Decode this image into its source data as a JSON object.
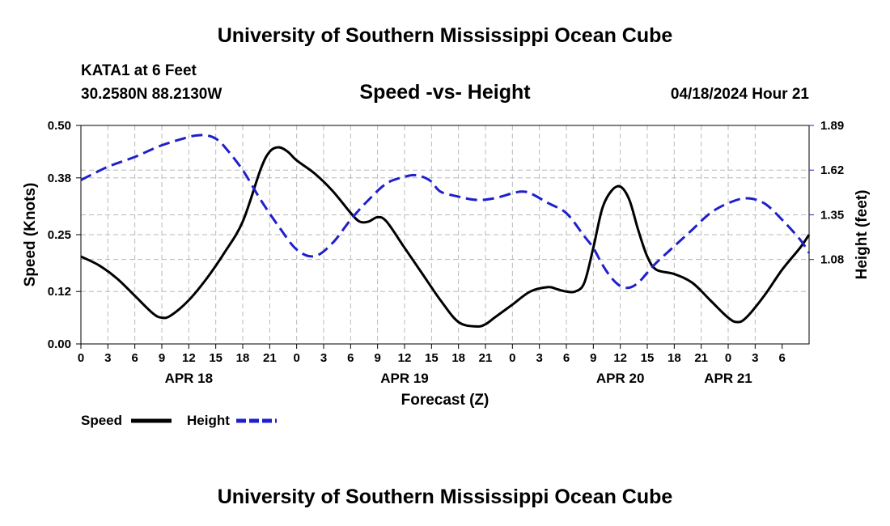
{
  "header": {
    "title": "University of Southern Mississippi Ocean Cube",
    "station": "KATA1 at 6 Feet",
    "coordinates": "30.2580N  88.2130W",
    "timestamp": "04/18/2024 Hour 21"
  },
  "footer": {
    "title": "University of Southern Mississippi Ocean Cube"
  },
  "chart_data": {
    "type": "line",
    "title": "Speed -vs- Height",
    "xlabel": "Forecast (Z)",
    "ylabel": "Speed (Knots)",
    "y2label": "Height (feet)",
    "ylim": [
      0,
      0.5
    ],
    "y2lim": [
      0.57,
      1.89
    ],
    "grid": true,
    "legend_position": "bottom-left",
    "x_range_hours": [
      0,
      81
    ],
    "x_tick_step_hours": 3,
    "x_tick_labels": [
      "0",
      "3",
      "6",
      "9",
      "12",
      "15",
      "18",
      "21",
      "0",
      "3",
      "6",
      "9",
      "12",
      "15",
      "18",
      "21",
      "0",
      "3",
      "6",
      "9",
      "12",
      "15",
      "18",
      "21",
      "0",
      "3",
      "6"
    ],
    "date_labels": [
      {
        "label": "APR 18",
        "hour": 12
      },
      {
        "label": "APR 19",
        "hour": 36
      },
      {
        "label": "APR 20",
        "hour": 60
      },
      {
        "label": "APR 21",
        "hour": 72
      }
    ],
    "y_ticks": [
      0.0,
      0.12,
      0.25,
      0.38,
      0.5
    ],
    "y_tick_labels": [
      "0.00",
      "0.12",
      "0.25",
      "0.38",
      "0.50"
    ],
    "y2_ticks": [
      1.08,
      1.35,
      1.62,
      1.89
    ],
    "y2_tick_labels": [
      "1.08",
      "1.35",
      "1.62",
      "1.89"
    ],
    "series": [
      {
        "name": "Speed",
        "color": "#000000",
        "axis": "left",
        "dash": "solid",
        "x": [
          0,
          2,
          4,
          6,
          8,
          9,
          10,
          12,
          14,
          16,
          18,
          20,
          21,
          22,
          23,
          24,
          26,
          28,
          30,
          31,
          32,
          33,
          34,
          36,
          38,
          40,
          42,
          44,
          45,
          46,
          48,
          50,
          52,
          53,
          54,
          55,
          56,
          57,
          58,
          59,
          60,
          61,
          62,
          63,
          64,
          66,
          68,
          70,
          72,
          73,
          74,
          76,
          78,
          80,
          81
        ],
        "values": [
          0.2,
          0.18,
          0.15,
          0.11,
          0.07,
          0.06,
          0.065,
          0.1,
          0.15,
          0.21,
          0.28,
          0.4,
          0.44,
          0.45,
          0.44,
          0.42,
          0.39,
          0.35,
          0.3,
          0.28,
          0.28,
          0.29,
          0.28,
          0.22,
          0.16,
          0.1,
          0.05,
          0.04,
          0.045,
          0.06,
          0.09,
          0.12,
          0.13,
          0.125,
          0.12,
          0.12,
          0.14,
          0.22,
          0.31,
          0.35,
          0.36,
          0.33,
          0.26,
          0.2,
          0.17,
          0.16,
          0.14,
          0.1,
          0.06,
          0.05,
          0.06,
          0.11,
          0.17,
          0.22,
          0.25
        ]
      },
      {
        "name": "Height",
        "color": "#1f1fcc",
        "axis": "right",
        "dash": "dashed",
        "x": [
          0,
          3,
          6,
          9,
          12,
          13,
          14,
          15,
          16,
          18,
          20,
          22,
          24,
          26,
          28,
          30,
          32,
          34,
          36,
          37,
          38,
          39,
          40,
          42,
          44,
          46,
          48,
          49,
          50,
          52,
          54,
          56,
          57,
          58,
          59,
          60,
          61,
          62,
          63,
          64,
          66,
          68,
          70,
          72,
          74,
          76,
          78,
          80,
          81
        ],
        "values": [
          1.56,
          1.64,
          1.7,
          1.77,
          1.82,
          1.83,
          1.83,
          1.81,
          1.76,
          1.62,
          1.44,
          1.28,
          1.14,
          1.1,
          1.18,
          1.32,
          1.44,
          1.54,
          1.58,
          1.59,
          1.58,
          1.55,
          1.49,
          1.46,
          1.44,
          1.45,
          1.48,
          1.49,
          1.48,
          1.42,
          1.36,
          1.22,
          1.15,
          1.05,
          0.97,
          0.92,
          0.91,
          0.94,
          1.0,
          1.06,
          1.16,
          1.26,
          1.36,
          1.42,
          1.45,
          1.42,
          1.32,
          1.2,
          1.12
        ]
      }
    ]
  }
}
